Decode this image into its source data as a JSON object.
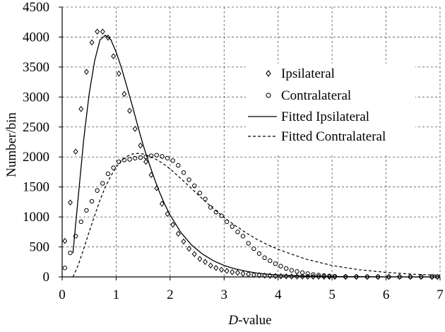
{
  "chart_data": {
    "type": "line",
    "title": "",
    "xlabel_italic": "D",
    "xlabel_rest": "-value",
    "ylabel": "Number/bin",
    "xlim": [
      0,
      7
    ],
    "ylim": [
      0,
      4500
    ],
    "x_ticks": [
      0,
      1,
      2,
      3,
      4,
      5,
      6,
      7
    ],
    "y_ticks": [
      0,
      500,
      1000,
      1500,
      2000,
      2500,
      3000,
      3500,
      4000,
      4500
    ],
    "grid": true,
    "legend_position": "right-center",
    "series": [
      {
        "name": "Ipsilateral",
        "kind": "scatter",
        "marker": "diamond",
        "x": [
          0.05,
          0.15,
          0.25,
          0.35,
          0.45,
          0.55,
          0.65,
          0.75,
          0.85,
          0.95,
          1.05,
          1.15,
          1.25,
          1.35,
          1.45,
          1.55,
          1.65,
          1.75,
          1.85,
          1.95,
          2.05,
          2.15,
          2.25,
          2.35,
          2.45,
          2.55,
          2.65,
          2.75,
          2.85,
          2.95,
          3.05,
          3.15,
          3.25,
          3.35,
          3.45,
          3.55,
          3.65,
          3.75,
          3.85,
          3.95,
          4.05,
          4.15,
          4.25,
          4.35,
          4.45,
          4.55,
          4.65,
          4.75,
          4.85,
          4.95,
          5.05,
          5.25,
          5.45,
          5.65,
          5.85,
          6.05,
          6.25,
          6.45,
          6.65,
          6.85,
          6.95
        ],
        "y": [
          600,
          1240,
          2090,
          2800,
          3420,
          3910,
          4090,
          4090,
          3990,
          3680,
          3390,
          3050,
          2770,
          2470,
          2190,
          1920,
          1700,
          1480,
          1220,
          1050,
          870,
          720,
          590,
          470,
          380,
          300,
          250,
          190,
          150,
          120,
          100,
          80,
          70,
          55,
          45,
          35,
          28,
          22,
          18,
          14,
          11,
          9,
          7,
          6,
          5,
          4,
          3,
          3,
          2,
          2,
          2,
          1,
          1,
          1,
          1,
          1,
          1,
          1,
          1,
          1,
          1
        ]
      },
      {
        "name": "Contralateral",
        "kind": "scatter",
        "marker": "circle",
        "x": [
          0.05,
          0.15,
          0.25,
          0.35,
          0.45,
          0.55,
          0.65,
          0.75,
          0.85,
          0.95,
          1.05,
          1.15,
          1.25,
          1.35,
          1.45,
          1.55,
          1.65,
          1.75,
          1.85,
          1.95,
          2.05,
          2.15,
          2.25,
          2.35,
          2.45,
          2.55,
          2.65,
          2.75,
          2.85,
          2.95,
          3.05,
          3.15,
          3.25,
          3.35,
          3.45,
          3.55,
          3.65,
          3.75,
          3.85,
          3.95,
          4.05,
          4.15,
          4.25,
          4.35,
          4.45,
          4.55,
          4.65,
          4.75,
          4.85,
          4.95,
          5.05,
          5.25,
          5.45,
          5.65,
          5.85,
          6.05,
          6.25,
          6.45,
          6.65,
          6.85,
          6.95
        ],
        "y": [
          150,
          400,
          680,
          920,
          1110,
          1260,
          1440,
          1560,
          1720,
          1820,
          1920,
          1950,
          1960,
          1980,
          1990,
          2000,
          2020,
          2030,
          2010,
          1980,
          1940,
          1860,
          1740,
          1620,
          1520,
          1400,
          1300,
          1160,
          1080,
          1020,
          920,
          840,
          750,
          680,
          560,
          470,
          390,
          320,
          270,
          220,
          180,
          140,
          110,
          90,
          70,
          55,
          40,
          30,
          22,
          15,
          10,
          5,
          3,
          2,
          2,
          1,
          1,
          1,
          1,
          1,
          1
        ]
      },
      {
        "name": "Fitted Ipsilateral",
        "kind": "line",
        "style": "solid",
        "x": [
          0.2,
          0.3,
          0.4,
          0.5,
          0.6,
          0.7,
          0.8,
          0.9,
          1.0,
          1.1,
          1.2,
          1.3,
          1.4,
          1.5,
          1.6,
          1.7,
          1.8,
          1.9,
          2.0,
          2.2,
          2.4,
          2.6,
          2.8,
          3.0,
          3.2,
          3.4,
          3.6,
          3.8,
          4.0,
          4.5,
          5.0,
          5.5,
          6.0,
          6.5,
          7.0
        ],
        "y": [
          400,
          1350,
          2300,
          3050,
          3600,
          3950,
          4030,
          3960,
          3750,
          3480,
          3170,
          2850,
          2520,
          2200,
          1920,
          1660,
          1420,
          1210,
          1030,
          740,
          530,
          380,
          270,
          190,
          135,
          95,
          65,
          45,
          32,
          14,
          6,
          3,
          1,
          0,
          0
        ]
      },
      {
        "name": "Fitted Contralateral",
        "kind": "line",
        "style": "dashed",
        "x": [
          0.2,
          0.3,
          0.4,
          0.5,
          0.6,
          0.7,
          0.8,
          0.9,
          1.0,
          1.1,
          1.2,
          1.3,
          1.4,
          1.5,
          1.6,
          1.7,
          1.8,
          1.9,
          2.0,
          2.2,
          2.4,
          2.6,
          2.8,
          3.0,
          3.2,
          3.4,
          3.6,
          3.8,
          4.0,
          4.5,
          5.0,
          5.5,
          6.0,
          6.5,
          7.0
        ],
        "y": [
          0,
          200,
          470,
          750,
          1020,
          1280,
          1500,
          1680,
          1830,
          1940,
          2010,
          2050,
          2060,
          2050,
          2020,
          1980,
          1930,
          1870,
          1800,
          1640,
          1470,
          1300,
          1140,
          990,
          860,
          740,
          630,
          540,
          460,
          300,
          190,
          120,
          75,
          45,
          28
        ]
      }
    ]
  }
}
